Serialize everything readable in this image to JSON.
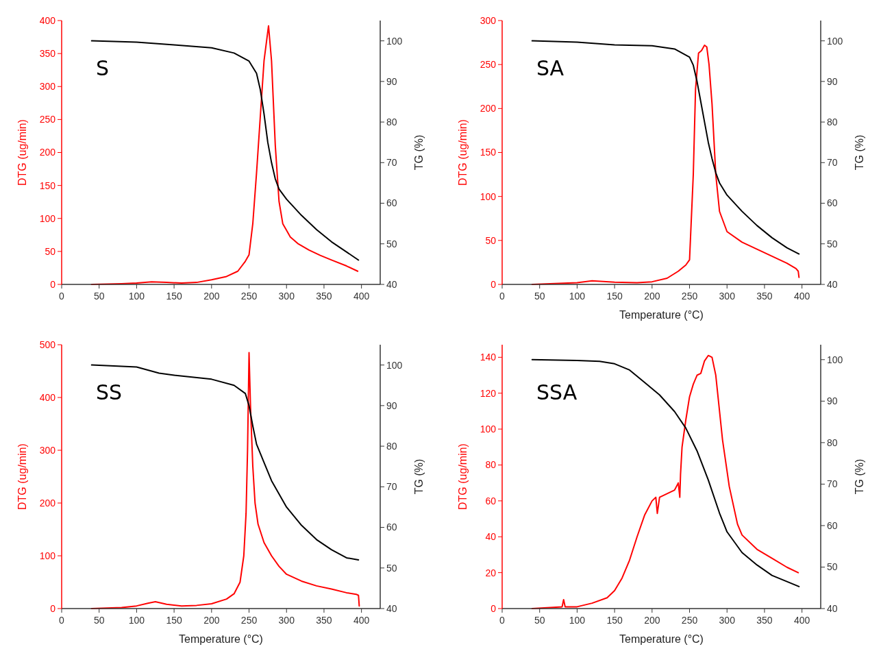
{
  "chart_data": [
    {
      "type": "line",
      "title": "S",
      "ylabel": "DTG (ug/min)",
      "y2label": "TG (%)",
      "xlim": [
        0,
        425
      ],
      "xticks": [
        0,
        50,
        100,
        150,
        200,
        250,
        300,
        350,
        400
      ],
      "ylim": [
        0,
        400
      ],
      "yticks": [
        0,
        50,
        100,
        150,
        200,
        250,
        300,
        350,
        400
      ],
      "y2lim": [
        40,
        105
      ],
      "y2ticks": [
        40,
        50,
        60,
        70,
        80,
        90,
        100
      ],
      "series": [
        {
          "color": "#ff0000",
          "axis": "y",
          "x": [
            40,
            60,
            80,
            100,
            120,
            140,
            160,
            180,
            200,
            220,
            235,
            245,
            250,
            255,
            260,
            265,
            270,
            276,
            280,
            285,
            290,
            295,
            300,
            305,
            315,
            330,
            345,
            360,
            380,
            395
          ],
          "values": [
            0,
            0.5,
            1,
            2,
            4,
            3,
            2,
            3,
            7,
            12,
            20,
            35,
            45,
            92,
            169,
            254,
            339,
            392,
            339,
            211,
            126,
            92,
            82,
            72,
            62,
            52,
            44,
            37,
            28,
            20
          ]
        },
        {
          "color": "#000000",
          "axis": "y2",
          "x": [
            40,
            100,
            150,
            200,
            230,
            250,
            260,
            265,
            270,
            275,
            280,
            285,
            290,
            300,
            320,
            340,
            360,
            380,
            396
          ],
          "values": [
            100,
            99.7,
            99,
            98.3,
            97,
            95,
            92,
            88,
            82,
            75,
            70,
            66,
            63.5,
            61,
            57,
            53.5,
            50.5,
            48,
            46
          ]
        }
      ]
    },
    {
      "type": "line",
      "title": "SA",
      "xlabel": "Temperature (°C)",
      "ylabel": "DTG (ug/min)",
      "y2label": "TG (%)",
      "xlim": [
        0,
        425
      ],
      "xticks": [
        0,
        50,
        100,
        150,
        200,
        250,
        300,
        350,
        400
      ],
      "ylim": [
        0,
        300
      ],
      "yticks": [
        0,
        50,
        100,
        150,
        200,
        250,
        300
      ],
      "y2lim": [
        40,
        105
      ],
      "y2ticks": [
        40,
        50,
        60,
        70,
        80,
        90,
        100
      ],
      "series": [
        {
          "color": "#ff0000",
          "axis": "y",
          "x": [
            40,
            70,
            100,
            120,
            150,
            180,
            200,
            220,
            235,
            245,
            250,
            255,
            258,
            262,
            266,
            270,
            273,
            276,
            280,
            285,
            290,
            300,
            320,
            340,
            360,
            380,
            392,
            395,
            396
          ],
          "values": [
            0,
            1,
            2,
            4,
            2.5,
            2,
            3,
            7,
            15,
            22,
            28,
            125,
            222,
            263,
            266,
            272,
            270,
            250,
            205,
            125,
            83,
            60,
            48,
            40,
            32,
            24,
            18,
            15,
            8
          ]
        },
        {
          "color": "#000000",
          "axis": "y2",
          "x": [
            40,
            100,
            150,
            200,
            230,
            250,
            255,
            260,
            265,
            270,
            275,
            280,
            285,
            290,
            300,
            320,
            340,
            360,
            380,
            396
          ],
          "values": [
            100,
            99.7,
            99,
            98.8,
            98,
            96,
            94,
            90,
            85,
            80,
            75,
            71,
            67.5,
            65,
            62,
            58,
            54.5,
            51.5,
            49,
            47.5
          ]
        }
      ]
    },
    {
      "type": "line",
      "title": "SS",
      "xlabel": "Temperature (°C)",
      "ylabel": "DTG (ug/min)",
      "y2label": "TG (%)",
      "xlim": [
        0,
        425
      ],
      "xticks": [
        0,
        50,
        100,
        150,
        200,
        250,
        300,
        350,
        400
      ],
      "ylim": [
        0,
        500
      ],
      "yticks": [
        0,
        100,
        200,
        300,
        400,
        500
      ],
      "y2lim": [
        40,
        105
      ],
      "y2ticks": [
        40,
        50,
        60,
        70,
        80,
        90,
        100
      ],
      "series": [
        {
          "color": "#ff0000",
          "axis": "y",
          "x": [
            40,
            80,
            100,
            115,
            125,
            140,
            160,
            180,
            200,
            220,
            230,
            238,
            243,
            246,
            248,
            250,
            252,
            255,
            258,
            262,
            270,
            280,
            290,
            300,
            320,
            340,
            360,
            380,
            393,
            396,
            397
          ],
          "values": [
            0,
            2,
            5,
            10,
            13,
            8,
            5,
            6,
            9,
            18,
            28,
            50,
            100,
            180,
            300,
            485,
            380,
            270,
            200,
            160,
            125,
            100,
            80,
            65,
            52,
            43,
            37,
            30,
            27,
            25,
            5
          ]
        },
        {
          "color": "#000000",
          "axis": "y2",
          "x": [
            40,
            100,
            130,
            150,
            200,
            230,
            245,
            250,
            255,
            260,
            270,
            280,
            300,
            320,
            340,
            360,
            380,
            396
          ],
          "values": [
            100,
            99.5,
            98,
            97.5,
            96.5,
            95,
            93,
            90,
            85,
            80.5,
            76,
            71.5,
            65,
            60.5,
            57,
            54.5,
            52.5,
            52
          ]
        }
      ]
    },
    {
      "type": "line",
      "title": "SSA",
      "xlabel": "Temperature (°C)",
      "ylabel": "DTG (ug/min)",
      "y2label": "TG (%)",
      "xlim": [
        0,
        425
      ],
      "xticks": [
        0,
        50,
        100,
        150,
        200,
        250,
        300,
        350,
        400
      ],
      "ylim": [
        0,
        147
      ],
      "yticks": [
        0,
        20,
        40,
        60,
        80,
        100,
        120,
        140
      ],
      "y2lim": [
        40,
        103.6
      ],
      "y2ticks": [
        40,
        50,
        60,
        70,
        80,
        90,
        100
      ],
      "series": [
        {
          "color": "#ff0000",
          "axis": "y",
          "x": [
            40,
            80,
            82,
            84,
            100,
            120,
            140,
            150,
            160,
            170,
            180,
            190,
            200,
            205,
            207,
            210,
            220,
            230,
            235,
            237,
            238,
            240,
            245,
            250,
            255,
            260,
            265,
            270,
            275,
            280,
            285,
            290,
            294,
            303,
            314,
            320,
            340,
            360,
            380,
            395
          ],
          "values": [
            0,
            1,
            5,
            1,
            1,
            3,
            6,
            10,
            17,
            27,
            40,
            52,
            60,
            62,
            53,
            62,
            64,
            66,
            70,
            62,
            75,
            90,
            105,
            118,
            125,
            130,
            131,
            138,
            141,
            140,
            130,
            110,
            94,
            68,
            47,
            41,
            33,
            28,
            23,
            20
          ]
        },
        {
          "color": "#000000",
          "axis": "y2",
          "x": [
            40,
            100,
            130,
            150,
            170,
            190,
            210,
            230,
            245,
            260,
            275,
            290,
            300,
            320,
            340,
            360,
            380,
            396
          ],
          "values": [
            100,
            99.8,
            99.6,
            99,
            97.5,
            94.5,
            91.5,
            87.5,
            83.5,
            78,
            71,
            63,
            58.5,
            53.5,
            50.5,
            48,
            46.5,
            45.3
          ]
        }
      ]
    }
  ]
}
